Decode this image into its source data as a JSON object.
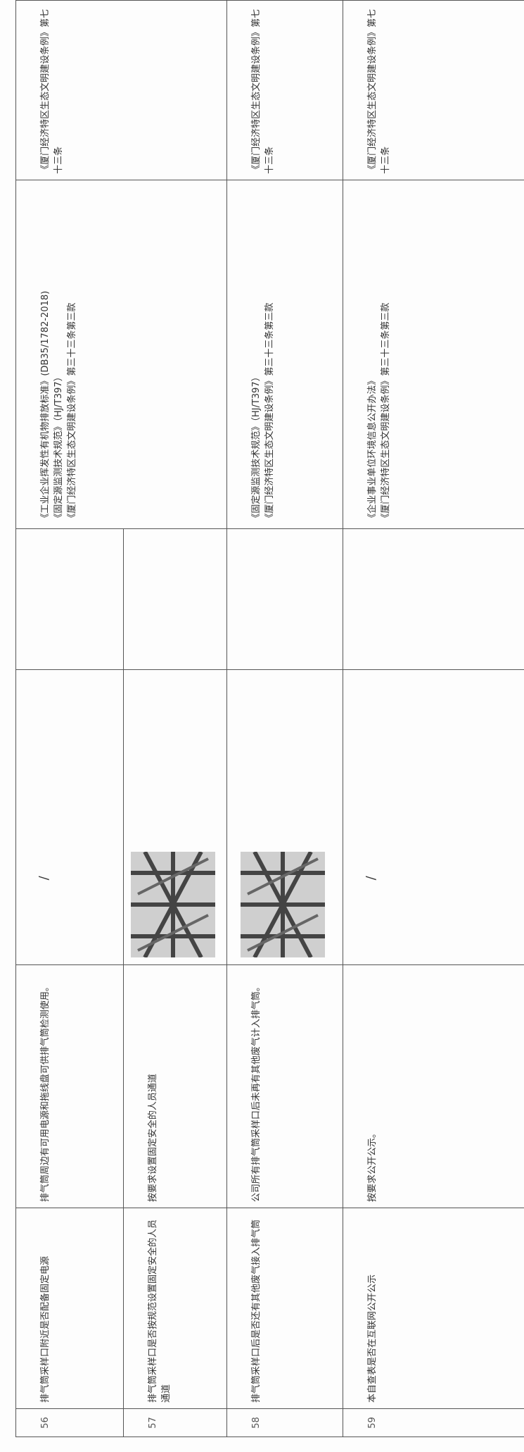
{
  "table": {
    "rows": [
      {
        "number": "56",
        "item": "排气筒采样口附近是否配备固定电源",
        "description": "排气筒周边有可用电源和拖线盘可供排气筒检测使用。",
        "photo": "/",
        "basis": [
          "《工业企业挥发性有机物排放标准》(DB35/1782-2018)",
          "《固定源监测技术规范》（HJ/T397）",
          "《厦门经济特区生态文明建设条例》第三十三条第三款"
        ],
        "law": "《厦门经济特区生态文明建设条例》第七十三条"
      },
      {
        "number": "57",
        "item": "排气筒采样口是否按规范设置固定安全的人员通道",
        "description": "按要求设置固定安全的人员通道"
      },
      {
        "number": "58",
        "item": "排气筒采样口后是否还有其他废气接入排气筒",
        "description": "公司所有排气筒采样口后未再有其他废气计入排气筒。",
        "basis": [
          "《固定源监测技术规范》（HJ/T397）",
          "《厦门经济特区生态文明建设条例》第三十三条第三款"
        ],
        "law": "《厦门经济特区生态文明建设条例》第七十三条"
      },
      {
        "number": "59",
        "item": "本自查表是否在互联网公开公示",
        "description": "按要求公开公示。",
        "photo": "/",
        "basis": [
          "《企业事业单位环境信息公开办法》",
          "《厦门经济特区生态文明建设条例》第三十三条第三款"
        ],
        "law": "《厦门经济特区生态文明建设条例》第七十三条"
      }
    ]
  }
}
